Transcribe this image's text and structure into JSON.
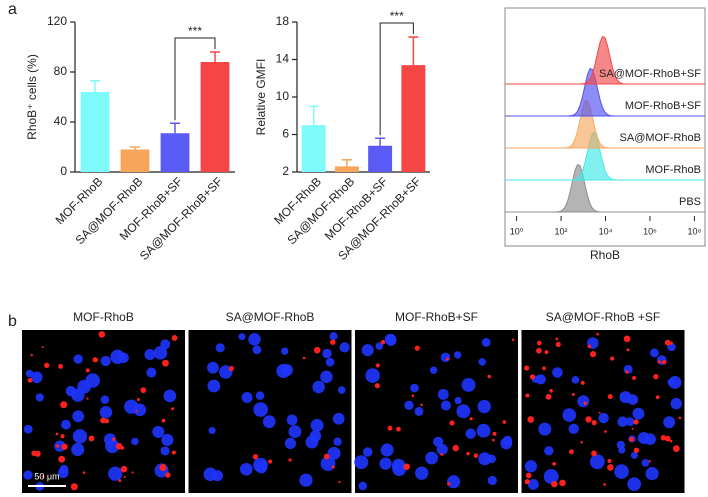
{
  "panel_labels": [
    "a",
    "b"
  ],
  "chart_data": [
    {
      "type": "bar",
      "y_label": "RhoB⁺ cells (%)",
      "categories": [
        "MOF-RhoB",
        "SA@MOF-RhoB",
        "MOF-RhoB+SF",
        "SA@MOF-RhoB+SF"
      ],
      "values": [
        64,
        18,
        31,
        88
      ],
      "errors": [
        9,
        2,
        8,
        8
      ],
      "colors": [
        "#7ffafa",
        "#f7a55a",
        "#5a5af5",
        "#f54545"
      ],
      "ylim": [
        0,
        120
      ],
      "yticks": [
        0,
        40,
        80,
        120
      ],
      "significance": [
        {
          "between": [
            2,
            3
          ],
          "label": "***"
        }
      ]
    },
    {
      "type": "bar",
      "y_label": "Relative GMFI",
      "categories": [
        "MOF-RhoB",
        "SA@MOF-RhoB",
        "MOF-RhoB+SF",
        "SA@MOF-RhoB+SF"
      ],
      "values": [
        7.0,
        2.6,
        4.8,
        13.4
      ],
      "errors": [
        2.0,
        0.7,
        0.8,
        3.0
      ],
      "colors": [
        "#7ffafa",
        "#f7a55a",
        "#5a5af5",
        "#f54545"
      ],
      "ylim": [
        2,
        18
      ],
      "yticks": [
        2,
        6,
        10,
        14,
        18
      ],
      "significance": [
        {
          "between": [
            2,
            3
          ],
          "label": "***"
        }
      ]
    },
    {
      "type": "ridgeline",
      "x_label": "RhoB",
      "log_x": true,
      "xlim": [
        0.3,
        300000000
      ],
      "xticks": [
        {
          "value": 1,
          "label": "10⁰"
        },
        {
          "value": 100,
          "label": "10²"
        },
        {
          "value": 10000,
          "label": "10⁴"
        },
        {
          "value": 1000000,
          "label": "10⁶"
        },
        {
          "value": 100000000,
          "label": "10⁸"
        }
      ],
      "series": [
        {
          "name": "PBS",
          "color": "#8c8c8c",
          "peak": 600
        },
        {
          "name": "MOF-RhoB",
          "color": "#40e8e8",
          "peak": 3000
        },
        {
          "name": "SA@MOF-RhoB",
          "color": "#f5a860",
          "peak": 1400
        },
        {
          "name": "MOF-RhoB+SF",
          "color": "#5050f0",
          "peak": 2200
        },
        {
          "name": "SA@MOF-RhoB+SF",
          "color": "#f04848",
          "peak": 8000
        }
      ]
    }
  ],
  "micrographs": {
    "titles": [
      "MOF-RhoB",
      "SA@MOF-RhoB",
      "MOF-RhoB+SF",
      "SA@MOF-RhoB +SF"
    ],
    "scale_bar": "50 μm"
  }
}
